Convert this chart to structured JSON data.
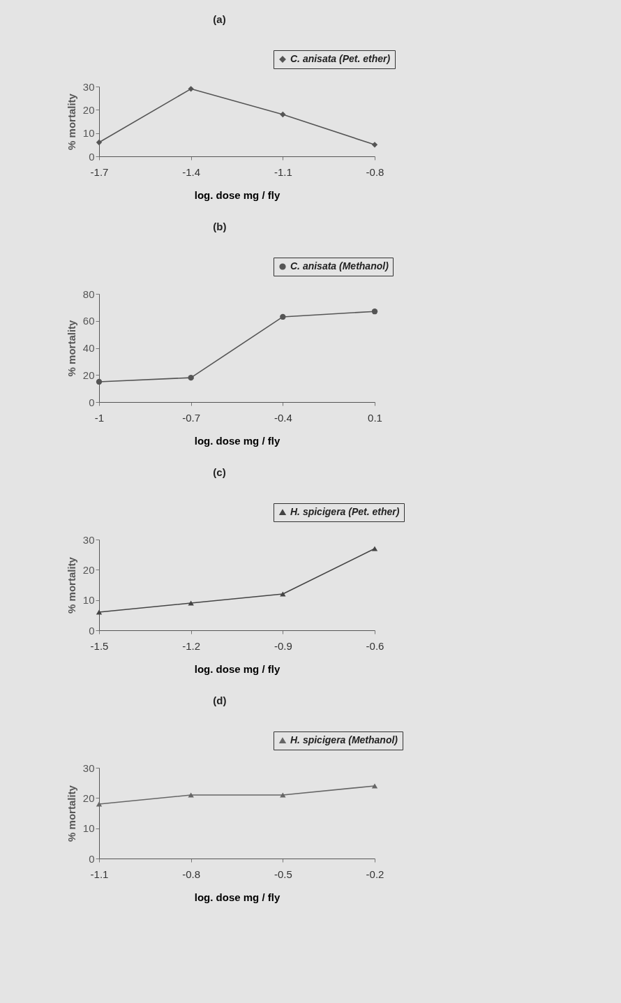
{
  "chart_data": [
    {
      "type": "line",
      "title": "(a)",
      "xlabel": "log. dose mg / fly",
      "ylabel": "% mortality",
      "categories": [
        "-1.7",
        "-1.4",
        "-1.1",
        "-0.8"
      ],
      "series": [
        {
          "name": "C. anisata (Pet. ether)",
          "color": "#555555",
          "values": [
            6,
            29,
            18,
            5
          ]
        }
      ],
      "ylim": [
        0,
        30
      ],
      "yticks": [
        0,
        10,
        20,
        30
      ],
      "legend": "top right",
      "marker": "diamond"
    },
    {
      "type": "line",
      "title": "(b)",
      "xlabel": "log. dose mg / fly",
      "ylabel": "% mortality",
      "categories": [
        "-1",
        "-0.7",
        "-0.4",
        "0.1"
      ],
      "series": [
        {
          "name": "C. anisata (Methanol)",
          "color": "#555555",
          "values": [
            15,
            18,
            63,
            67
          ]
        }
      ],
      "ylim": [
        0,
        80
      ],
      "yticks": [
        0,
        20,
        40,
        60,
        80
      ],
      "legend": "top right",
      "marker": "circle"
    },
    {
      "type": "line",
      "title": "(c)",
      "xlabel": "log. dose mg / fly",
      "ylabel": "% mortality",
      "categories": [
        "-1.5",
        "-1.2",
        "-0.9",
        "-0.6"
      ],
      "series": [
        {
          "name": "H. spicigera (Pet. ether)",
          "color": "#444444",
          "values": [
            6,
            9,
            12,
            27
          ]
        }
      ],
      "ylim": [
        0,
        30
      ],
      "yticks": [
        0,
        10,
        20,
        30
      ],
      "legend": "top right",
      "marker": "triangle"
    },
    {
      "type": "line",
      "title": "(d)",
      "xlabel": "log. dose mg / fly",
      "ylabel": "% mortality",
      "categories": [
        "-1.1",
        "-0.8",
        "-0.5",
        "-0.2"
      ],
      "series": [
        {
          "name": "H. spicigera (Methanol)",
          "color": "#666666",
          "values": [
            18,
            21,
            21,
            24
          ]
        }
      ],
      "ylim": [
        0,
        30
      ],
      "yticks": [
        0,
        10,
        20,
        30
      ],
      "legend": "top right",
      "marker": "triangle"
    }
  ]
}
